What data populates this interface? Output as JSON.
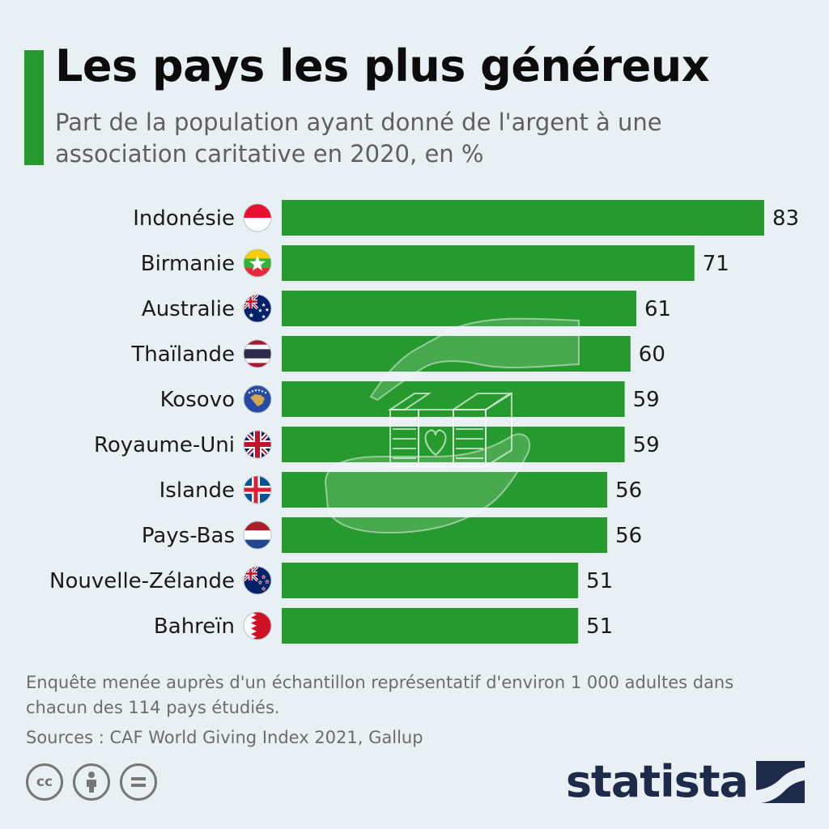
{
  "header": {
    "title": "Les pays les plus généreux",
    "subtitle": "Part de la population ayant donné de l'argent à une association caritative en 2020, en %"
  },
  "chart_data": {
    "type": "bar",
    "orientation": "horizontal",
    "title": "Les pays les plus généreux",
    "subtitle": "Part de la population ayant donné de l'argent à une association caritative en 2020, en %",
    "categories": [
      "Indonésie",
      "Birmanie",
      "Australie",
      "Thaïlande",
      "Kosovo",
      "Royaume-Uni",
      "Islande",
      "Pays-Bas",
      "Nouvelle-Zélande",
      "Bahreïn"
    ],
    "values": [
      83,
      71,
      61,
      60,
      59,
      59,
      56,
      56,
      51,
      51
    ],
    "xlim": [
      0,
      100
    ],
    "bar_color": "#279a2f",
    "grid": false,
    "legend": "none"
  },
  "flags": [
    "indonesia",
    "myanmar",
    "australia",
    "thailand",
    "kosovo",
    "uk",
    "iceland",
    "netherlands",
    "new-zealand",
    "bahrain"
  ],
  "decoration": {
    "icon": "charity-hands-icon"
  },
  "footer": {
    "note": "Enquête menée auprès d'un échantillon représentatif d'environ 1 000 adultes dans chacun des 114 pays étudiés.",
    "sources": "Sources : CAF World Giving Index 2021, Gallup",
    "cc_label": "cc",
    "brand": "statista",
    "brand_color": "#1e2a4a"
  }
}
